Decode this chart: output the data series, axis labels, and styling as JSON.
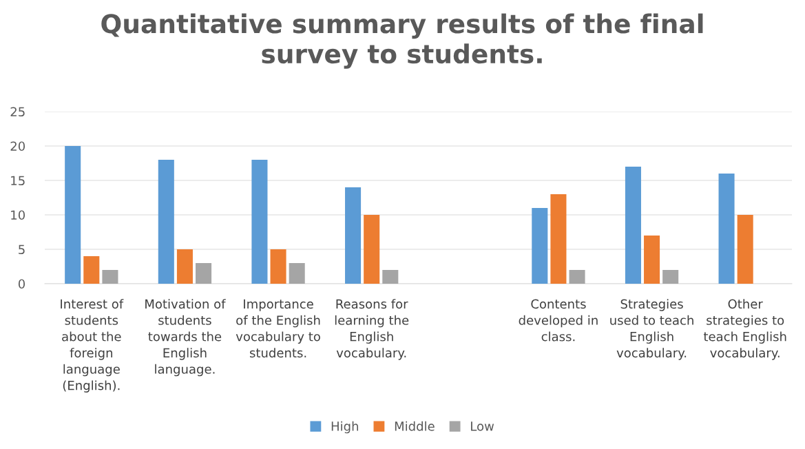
{
  "chart_data": {
    "type": "bar",
    "title": "Quantitative summary results of the final\nsurvey to students.",
    "categories": [
      "Interest of\nstudents\nabout the\nforeign\nlanguage\n(English).",
      "Motivation of\nstudents\ntowards the\nEnglish\nlanguage.",
      "Importance\nof the English\nvocabulary to\nstudents.",
      "Reasons for\nlearning the\nEnglish\nvocabulary.",
      null,
      "Contents\ndeveloped in\nclass.",
      "Strategies\nused to teach\nEnglish\nvocabulary.",
      "Other\nstrategies to\nteach English\nvocabulary."
    ],
    "series": [
      {
        "name": "High",
        "color": "#5b9bd5",
        "values": [
          20,
          18,
          18,
          14,
          null,
          11,
          17,
          16
        ]
      },
      {
        "name": "Middle",
        "color": "#ed7d31",
        "values": [
          4,
          5,
          5,
          10,
          null,
          13,
          7,
          10
        ]
      },
      {
        "name": "Low",
        "color": "#a5a5a5",
        "values": [
          2,
          3,
          3,
          2,
          null,
          2,
          2,
          0
        ]
      }
    ],
    "ylim": [
      0,
      25
    ],
    "yticks": [
      0,
      5,
      10,
      15,
      20,
      25
    ],
    "grid": "y",
    "legend": "bottom"
  }
}
